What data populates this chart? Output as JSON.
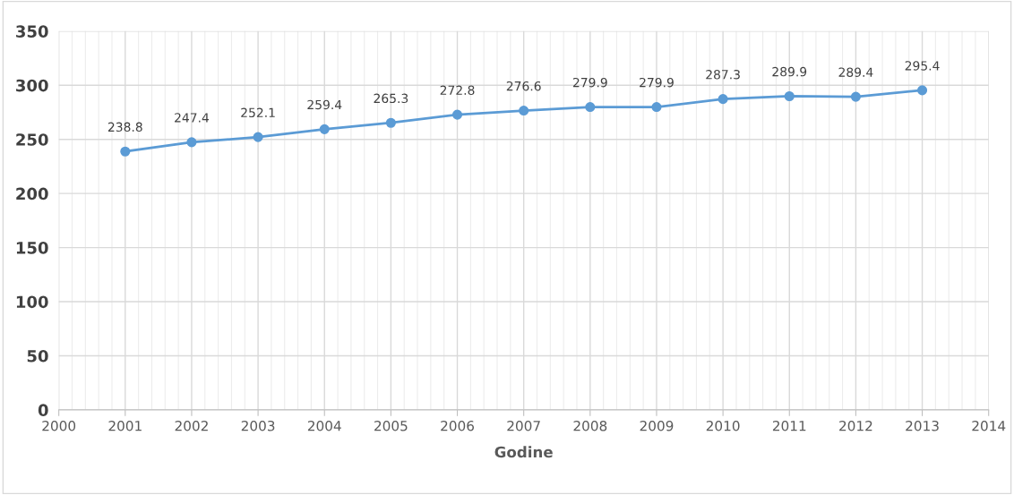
{
  "chart_data": {
    "type": "line",
    "xlabel": "Godine",
    "x": [
      2001,
      2002,
      2003,
      2004,
      2005,
      2006,
      2007,
      2008,
      2009,
      2010,
      2011,
      2012,
      2013
    ],
    "series": [
      {
        "color": "#5b9bd5",
        "values": [
          238.8,
          247.4,
          252.1,
          259.4,
          265.3,
          272.8,
          276.6,
          279.9,
          279.9,
          287.3,
          289.9,
          289.4,
          295.4
        ]
      }
    ],
    "xlim": [
      2000,
      2014
    ],
    "xticks": [
      2000,
      2001,
      2002,
      2003,
      2004,
      2005,
      2006,
      2007,
      2008,
      2009,
      2010,
      2011,
      2012,
      2013,
      2014
    ],
    "ylim": [
      0,
      350
    ],
    "yticks": [
      0,
      50,
      100,
      150,
      200,
      250,
      300,
      350
    ],
    "grid": true,
    "marker": "circle",
    "line_style": "solid",
    "data_labels": true
  }
}
